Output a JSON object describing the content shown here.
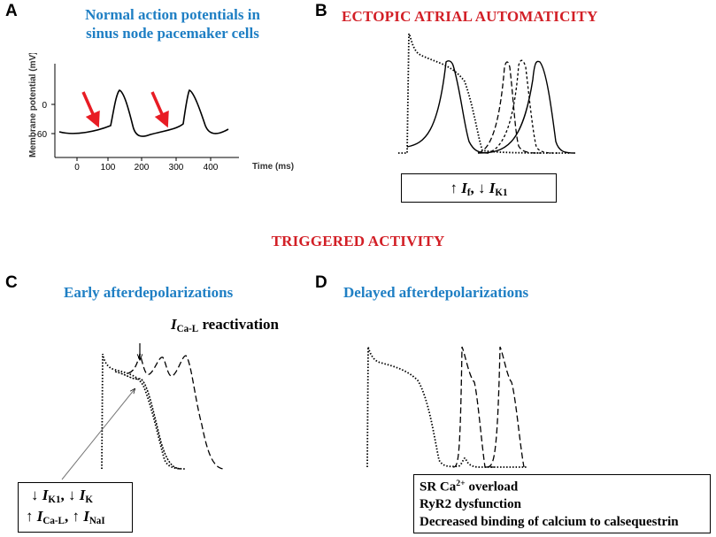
{
  "panel_a": {
    "letter": "A",
    "title_line1": "Normal action potentials in",
    "title_line2": "sinus node pacemaker cells",
    "y_axis_label": "Membrane potential (mV)",
    "x_axis_label": "Time (ms)",
    "y_ticks": [
      "0",
      "-60"
    ],
    "x_ticks": [
      "0",
      "100",
      "200",
      "300",
      "400"
    ],
    "arrow_color": "#e81c24"
  },
  "panel_b": {
    "letter": "B",
    "title": "ECTOPIC ATRIAL AUTOMATICITY",
    "box": {
      "arrow1": "↑",
      "current1": "I",
      "current1_sub": "f",
      "separator": ",",
      "arrow2": "↓",
      "current2": "I",
      "current2_sub": "K1"
    }
  },
  "section_title": "TRIGGERED ACTIVITY",
  "panel_c": {
    "letter": "C",
    "title": "Early afterdepolarizations",
    "annotation": {
      "current": "I",
      "current_sub": "Ca-L",
      "text": "reactivation"
    },
    "box": {
      "line1": [
        {
          "arrow": "↓",
          "current": "I",
          "sub": "K1",
          "sep": ","
        },
        {
          "arrow": "↓",
          "current": "I",
          "sub": "K",
          "sep": ""
        }
      ],
      "line2": [
        {
          "arrow": "↑",
          "current": "I",
          "sub": "Ca-L",
          "sep": ","
        },
        {
          "arrow": "↑",
          "current": "I",
          "sub": "NaI",
          "sep": ""
        }
      ]
    }
  },
  "panel_d": {
    "letter": "D",
    "title": "Delayed afterdepolarizations",
    "box": {
      "line1_pre": "SR Ca",
      "line1_sup": "2+",
      "line1_post": " overload",
      "line2": "RyR2 dysfunction",
      "line3": "Decreased binding of calcium to calsequestrin"
    }
  },
  "colors": {
    "blue_title": "#1f7fc4",
    "red_title": "#d21f26",
    "trace": "#000000"
  }
}
